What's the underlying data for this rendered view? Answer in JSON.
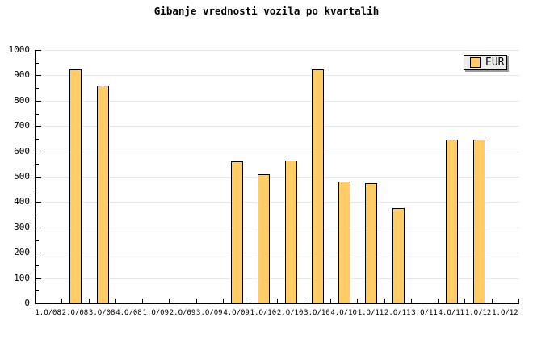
{
  "title": "Gibanje vrednosti vozila po kvartalih",
  "legend": {
    "label": "EUR",
    "swatch_color": "#ffcc66"
  },
  "colors": {
    "background": "#ffffff",
    "bar_fill": "#ffcc66",
    "bar_border": "#000000",
    "gridline": "#e8e8e8",
    "axis": "#000000",
    "legend_bg": "#ededed",
    "legend_shadow": "#9a9a9a",
    "text": "#000000"
  },
  "chart_data": {
    "type": "bar",
    "title": "Gibanje vrednosti vozila po kvartalih",
    "xlabel": "",
    "ylabel": "",
    "categories": [
      "1.Q/08",
      "2.Q/08",
      "3.Q/08",
      "4.Q/08",
      "1.Q/09",
      "2.Q/09",
      "3.Q/09",
      "4.Q/09",
      "1.Q/10",
      "2.Q/10",
      "3.Q/10",
      "4.Q/10",
      "1.Q/11",
      "2.Q/11",
      "3.Q/11",
      "4.Q/11",
      "1.Q/12",
      "1.Q/12"
    ],
    "series": [
      {
        "name": "EUR",
        "values": [
          null,
          925,
          860,
          null,
          null,
          null,
          null,
          560,
          510,
          565,
          925,
          480,
          475,
          375,
          null,
          645,
          648,
          null
        ]
      }
    ],
    "ylim": [
      0,
      1000
    ],
    "y_ticks": [
      0,
      100,
      200,
      300,
      400,
      500,
      600,
      700,
      800,
      900,
      1000
    ],
    "y_minor_step": 50,
    "grid": true,
    "legend_position": "top-right"
  }
}
